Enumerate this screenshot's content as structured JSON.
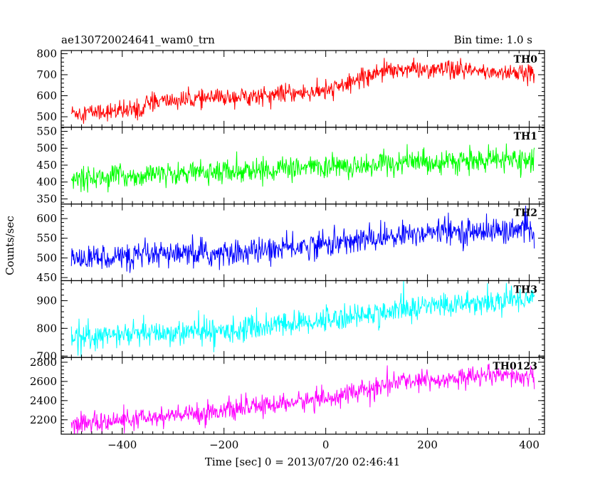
{
  "header": {
    "left": "ae130720024641_wam0_trn",
    "right": "Bin time: 1.0 s"
  },
  "chart_data": {
    "type": "line",
    "xlabel": "Time [sec] 0 = 2013/07/20 02:46:41",
    "ylabel": "Counts/sec",
    "xlim": [
      -520,
      430
    ],
    "x_ticks": [
      -400,
      -200,
      0,
      200,
      400
    ],
    "x_tick_labels": [
      "−400",
      "−200",
      "0",
      "200",
      "400"
    ],
    "x_range": [
      -500,
      410
    ],
    "bin_time_s": 1.0,
    "panels": [
      {
        "name": "TH0",
        "color": "#ff0000",
        "ylim": [
          450,
          815
        ],
        "yticks": [
          500,
          600,
          700,
          800
        ],
        "trend": [
          [
            -500,
            520
          ],
          [
            -360,
            530
          ],
          [
            -350,
            570
          ],
          [
            0,
            620
          ],
          [
            120,
            730
          ],
          [
            300,
            715
          ],
          [
            410,
            705
          ]
        ],
        "noise": 38
      },
      {
        "name": "TH1",
        "color": "#00ff00",
        "ylim": [
          335,
          562
        ],
        "yticks": [
          350,
          400,
          450,
          500,
          550
        ],
        "trend": [
          [
            -500,
            410
          ],
          [
            -350,
            420
          ],
          [
            0,
            445
          ],
          [
            200,
            460
          ],
          [
            410,
            465
          ]
        ],
        "noise": 30
      },
      {
        "name": "TH2",
        "color": "#0000ff",
        "ylim": [
          442,
          637
        ],
        "yticks": [
          450,
          500,
          550,
          600
        ],
        "trend": [
          [
            -500,
            500
          ],
          [
            -200,
            510
          ],
          [
            0,
            535
          ],
          [
            200,
            565
          ],
          [
            410,
            570
          ]
        ],
        "noise": 30
      },
      {
        "name": "TH3",
        "color": "#00ffff",
        "ylim": [
          695,
          972
        ],
        "yticks": [
          700,
          800,
          900
        ],
        "trend": [
          [
            -500,
            770
          ],
          [
            -200,
            790
          ],
          [
            0,
            830
          ],
          [
            200,
            880
          ],
          [
            410,
            910
          ]
        ],
        "noise": 40
      },
      {
        "name": "TH0123",
        "color": "#ff00ff",
        "ylim": [
          2050,
          2850
        ],
        "yticks": [
          2200,
          2400,
          2600,
          2800
        ],
        "trend": [
          [
            -500,
            2150
          ],
          [
            -300,
            2240
          ],
          [
            0,
            2420
          ],
          [
            150,
            2600
          ],
          [
            300,
            2650
          ],
          [
            410,
            2650
          ]
        ],
        "noise": 90
      }
    ]
  }
}
